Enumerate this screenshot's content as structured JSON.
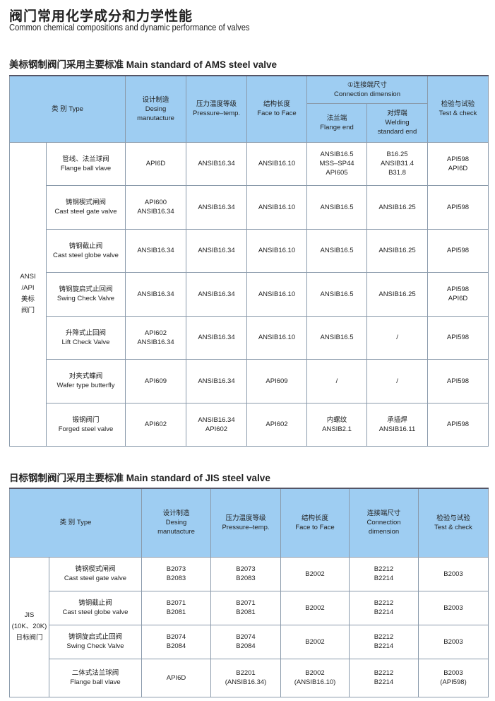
{
  "title": "阀门常用化学成分和力学性能",
  "subtitle": "Common chemical compositions and dynamic performance of valves",
  "ams": {
    "heading": "美标钢制阀门采用主要标准 Main standard of AMS steel valve",
    "headers": {
      "type": "类 别 Type",
      "design": [
        "设计制造",
        "Desing",
        "manutacture"
      ],
      "pressure": [
        "压力温度等级",
        "Pressure–temp."
      ],
      "face": [
        "结构长度",
        "Face to Face"
      ],
      "connection": [
        "①连接端尺寸",
        "Connection dimension"
      ],
      "flange": [
        "法兰端",
        "Flange end"
      ],
      "welding": [
        "对焊端",
        "Welding",
        "standard end"
      ],
      "test": [
        "检验与试验",
        "Test & check"
      ]
    },
    "group": [
      "ANSI",
      "/API",
      "美标",
      "阀门"
    ],
    "rows": [
      {
        "type": [
          "管线、法兰球阀",
          "Flange ball vlave"
        ],
        "design": [
          "API6D"
        ],
        "pressure": [
          "ANSIB16.34"
        ],
        "face": [
          "ANSIB16.10"
        ],
        "flange": [
          "ANSIB16.5",
          "MSS–SP44",
          "API605"
        ],
        "welding": [
          "B16.25",
          "ANSIB31.4",
          "B31.8"
        ],
        "test": [
          "API598",
          "API6D"
        ]
      },
      {
        "type": [
          "铸钢楔式闸阀",
          "Cast steel gate valve"
        ],
        "design": [
          "API600",
          "ANSIB16.34"
        ],
        "pressure": [
          "ANSIB16.34"
        ],
        "face": [
          "ANSIB16.10"
        ],
        "flange": [
          "ANSIB16.5"
        ],
        "welding": [
          "ANSIB16.25"
        ],
        "test": [
          "API598"
        ]
      },
      {
        "type": [
          "铸钢截止阀",
          "Cast steel globe valve"
        ],
        "design": [
          "ANSIB16.34"
        ],
        "pressure": [
          "ANSIB16.34"
        ],
        "face": [
          "ANSIB16.10"
        ],
        "flange": [
          "ANSIB16.5"
        ],
        "welding": [
          "ANSIB16.25"
        ],
        "test": [
          "API598"
        ]
      },
      {
        "type": [
          "铸钢旋启式止回阀",
          "Swing Check Valve"
        ],
        "design": [
          "ANSIB16.34"
        ],
        "pressure": [
          "ANSIB16.34"
        ],
        "face": [
          "ANSIB16.10"
        ],
        "flange": [
          "ANSIB16.5"
        ],
        "welding": [
          "ANSIB16.25"
        ],
        "test": [
          "API598",
          "API6D"
        ]
      },
      {
        "type": [
          "升降式止回阀",
          "Lift Check Valve"
        ],
        "design": [
          "API602",
          "ANSIB16.34"
        ],
        "pressure": [
          "ANSIB16.34"
        ],
        "face": [
          "ANSIB16.10"
        ],
        "flange": [
          "ANSIB16.5"
        ],
        "welding": [
          "/"
        ],
        "test": [
          "API598"
        ]
      },
      {
        "type": [
          "对夹式蝶阀",
          "Wafer type butterfly"
        ],
        "design": [
          "API609"
        ],
        "pressure": [
          "ANSIB16.34"
        ],
        "face": [
          "API609"
        ],
        "flange": [
          "/"
        ],
        "welding": [
          "/"
        ],
        "test": [
          "API598"
        ]
      },
      {
        "type": [
          "锻钢阀门",
          "Forged steel valve"
        ],
        "design": [
          "API602"
        ],
        "pressure": [
          "ANSIB16.34",
          "API602"
        ],
        "face": [
          "API602"
        ],
        "flange": [
          "内螺纹",
          "ANSIB2.1"
        ],
        "welding": [
          "承插焊",
          "ANSIB16.11"
        ],
        "test": [
          "API598"
        ]
      }
    ]
  },
  "jis": {
    "heading": "日标钢制阀门采用主要标准 Main standard of JIS steel valve",
    "headers": {
      "type": "类 别 Type",
      "design": [
        "设计制造",
        "Desing",
        "manutacture"
      ],
      "pressure": [
        "压力温度等级",
        "Pressure–temp."
      ],
      "face": [
        "结构长度",
        "Face to Face"
      ],
      "connection": [
        "连接端尺寸",
        "Connection",
        "dimension"
      ],
      "test": [
        "检验与试验",
        "Test & check"
      ]
    },
    "group": [
      "JIS",
      "(10K、20K)",
      "日标阀门"
    ],
    "rows": [
      {
        "type": [
          "铸钢楔式闸阀",
          "Cast steel gate valve"
        ],
        "design": [
          "B2073",
          "B2083"
        ],
        "pressure": [
          "B2073",
          "B2083"
        ],
        "face": [
          "B2002"
        ],
        "connection": [
          "B2212",
          "B2214"
        ],
        "test": [
          "B2003"
        ]
      },
      {
        "type": [
          "铸钢截止阀",
          "Cast steel globe valve"
        ],
        "design": [
          "B2071",
          "B2081"
        ],
        "pressure": [
          "B2071",
          "B2081"
        ],
        "face": [
          "B2002"
        ],
        "connection": [
          "B2212",
          "B2214"
        ],
        "test": [
          "B2003"
        ]
      },
      {
        "type": [
          "铸钢旋启式止回阀",
          "Swing Check Valve"
        ],
        "design": [
          "B2074",
          "B2084"
        ],
        "pressure": [
          "B2074",
          "B2084"
        ],
        "face": [
          "B2002"
        ],
        "connection": [
          "B2212",
          "B2214"
        ],
        "test": [
          "B2003"
        ]
      },
      {
        "type": [
          "二体式法兰球阀",
          "Flange ball vlave"
        ],
        "design": [
          "API6D"
        ],
        "pressure": [
          "B2201",
          "(ANSIB16.34)"
        ],
        "face": [
          "B2002",
          "(ANSIB16.10)"
        ],
        "connection": [
          "B2212",
          "B2214"
        ],
        "test": [
          "B2003",
          "(API598)"
        ]
      }
    ]
  }
}
